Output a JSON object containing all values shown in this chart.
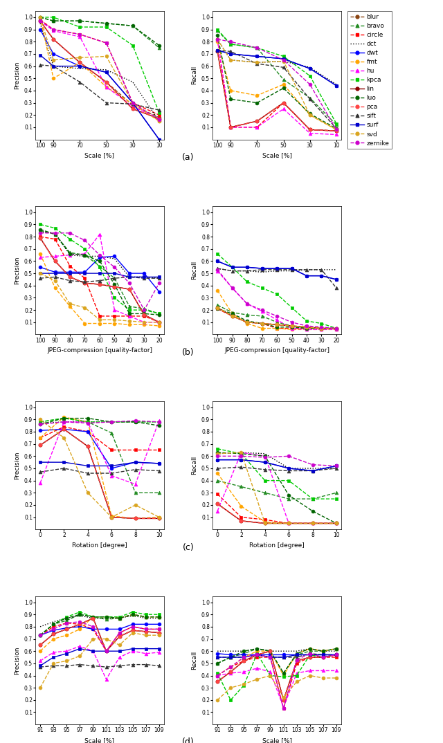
{
  "methods": [
    "blur",
    "bravo",
    "circle",
    "dct",
    "dwt",
    "fmt",
    "hu",
    "kpca",
    "lin",
    "luo",
    "pca",
    "sift",
    "surf",
    "svd",
    "zernike"
  ],
  "colors": {
    "blur": "#8B4513",
    "bravo": "#228B22",
    "circle": "#FF0000",
    "dct": "#000000",
    "dwt": "#0000FF",
    "fmt": "#FFA500",
    "hu": "#FF00FF",
    "kpca": "#00CC00",
    "lin": "#8B0000",
    "luo": "#006400",
    "pca": "#FF4444",
    "sift": "#333333",
    "surf": "#0000CC",
    "svd": "#DAA520",
    "zernike": "#CC00CC"
  },
  "linestyles": {
    "blur": "--",
    "bravo": "--",
    "circle": "--",
    "dct": ":",
    "dwt": "-",
    "fmt": "--",
    "hu": "--",
    "kpca": "--",
    "lin": "-",
    "luo": "--",
    "pca": "--",
    "sift": "--",
    "surf": "-",
    "svd": "--",
    "zernike": "--"
  },
  "markers": {
    "blur": "o",
    "bravo": "^",
    "circle": "s",
    "dct": "None",
    "dwt": "o",
    "fmt": "o",
    "hu": "^",
    "kpca": "s",
    "lin": "o",
    "luo": "o",
    "pca": "o",
    "sift": "^",
    "surf": "s",
    "svd": "o",
    "zernike": "o"
  },
  "panel_a": {
    "x": [
      100,
      90,
      70,
      50,
      30,
      10
    ],
    "invert_x": true,
    "xlabel": "Scale [%]",
    "precision": {
      "blur": [
        0.97,
        0.82,
        0.63,
        0.47,
        0.28,
        0.18
      ],
      "bravo": [
        1.0,
        0.97,
        0.97,
        0.95,
        0.93,
        0.75
      ],
      "circle": [
        0.98,
        0.9,
        0.86,
        0.79,
        0.3,
        0.2
      ],
      "dct": [
        0.95,
        0.6,
        0.58,
        0.57,
        0.47,
        0.15
      ],
      "dwt": [
        0.9,
        0.7,
        0.6,
        0.55,
        0.3,
        0.0
      ],
      "fmt": [
        1.0,
        0.5,
        0.63,
        0.43,
        0.29,
        0.15
      ],
      "hu": [
        0.97,
        0.89,
        0.84,
        0.43,
        0.27,
        0.17
      ],
      "kpca": [
        1.0,
        1.0,
        0.92,
        0.92,
        0.77,
        0.22
      ],
      "lin": [
        0.97,
        0.82,
        0.63,
        0.47,
        0.25,
        0.17
      ],
      "luo": [
        1.0,
        0.97,
        0.97,
        0.95,
        0.93,
        0.77
      ],
      "pca": [
        0.97,
        0.82,
        0.63,
        0.47,
        0.25,
        0.17
      ],
      "sift": [
        0.61,
        0.6,
        0.47,
        0.3,
        0.29,
        0.24
      ],
      "surf": [
        0.69,
        0.6,
        0.6,
        0.55,
        0.3,
        0.0
      ],
      "svd": [
        1.0,
        0.65,
        0.67,
        0.68,
        0.3,
        0.15
      ],
      "zernike": [
        0.97,
        0.9,
        0.86,
        0.79,
        0.3,
        0.16
      ]
    },
    "recall": {
      "blur": [
        0.72,
        0.1,
        0.15,
        0.3,
        0.08,
        0.07
      ],
      "bravo": [
        0.89,
        0.78,
        0.75,
        0.49,
        0.34,
        0.12
      ],
      "circle": [
        0.82,
        0.1,
        0.1,
        0.3,
        0.08,
        0.07
      ],
      "dct": [
        0.82,
        0.65,
        0.63,
        0.64,
        0.59,
        0.45
      ],
      "dwt": [
        0.73,
        0.7,
        0.68,
        0.66,
        0.58,
        0.44
      ],
      "fmt": [
        0.8,
        0.4,
        0.36,
        0.45,
        0.2,
        0.08
      ],
      "hu": [
        0.82,
        0.1,
        0.1,
        0.25,
        0.05,
        0.04
      ],
      "kpca": [
        0.9,
        0.78,
        0.75,
        0.68,
        0.52,
        0.13
      ],
      "lin": [
        0.72,
        0.1,
        0.15,
        0.3,
        0.08,
        0.07
      ],
      "luo": [
        0.85,
        0.33,
        0.3,
        0.42,
        0.21,
        0.09
      ],
      "pca": [
        0.72,
        0.1,
        0.15,
        0.3,
        0.08,
        0.07
      ],
      "sift": [
        0.73,
        0.72,
        0.62,
        0.59,
        0.33,
        0.09
      ],
      "surf": [
        0.73,
        0.7,
        0.68,
        0.66,
        0.58,
        0.44
      ],
      "svd": [
        0.82,
        0.65,
        0.63,
        0.64,
        0.2,
        0.08
      ],
      "zernike": [
        0.82,
        0.8,
        0.75,
        0.65,
        0.45,
        0.08
      ]
    }
  },
  "panel_b": {
    "x": [
      100,
      90,
      80,
      70,
      60,
      50,
      40,
      30,
      20
    ],
    "invert_x": true,
    "xlabel": "JPEG-compression [quality-factor]",
    "precision": {
      "blur": [
        0.79,
        0.6,
        0.47,
        0.42,
        0.41,
        0.39,
        0.37,
        0.16,
        0.1
      ],
      "bravo": [
        0.85,
        0.82,
        0.67,
        0.65,
        0.56,
        0.46,
        0.23,
        0.21,
        0.17
      ],
      "circle": [
        0.8,
        0.78,
        0.56,
        0.46,
        0.15,
        0.15,
        0.15,
        0.15,
        0.1
      ],
      "dct": [
        0.84,
        0.83,
        0.65,
        0.64,
        0.64,
        0.62,
        0.47,
        0.47,
        0.46
      ],
      "dwt": [
        0.55,
        0.51,
        0.51,
        0.51,
        0.63,
        0.64,
        0.5,
        0.5,
        0.35
      ],
      "fmt": [
        0.66,
        0.38,
        0.23,
        0.09,
        0.09,
        0.09,
        0.08,
        0.08,
        0.07
      ],
      "hu": [
        0.63,
        0.64,
        0.65,
        0.66,
        0.82,
        0.2,
        0.15,
        0.1,
        0.1
      ],
      "kpca": [
        0.9,
        0.87,
        0.78,
        0.7,
        0.55,
        0.3,
        0.2,
        0.2,
        0.17
      ],
      "lin": [
        0.79,
        0.6,
        0.47,
        0.42,
        0.41,
        0.39,
        0.37,
        0.16,
        0.1
      ],
      "luo": [
        0.86,
        0.82,
        0.66,
        0.65,
        0.6,
        0.41,
        0.17,
        0.17,
        0.16
      ],
      "pca": [
        0.79,
        0.6,
        0.47,
        0.42,
        0.41,
        0.39,
        0.37,
        0.16,
        0.1
      ],
      "sift": [
        0.46,
        0.47,
        0.44,
        0.43,
        0.44,
        0.46,
        0.47,
        0.46,
        0.46
      ],
      "surf": [
        0.5,
        0.5,
        0.5,
        0.5,
        0.5,
        0.5,
        0.47,
        0.47,
        0.47
      ],
      "svd": [
        0.5,
        0.44,
        0.25,
        0.22,
        0.12,
        0.12,
        0.11,
        0.1,
        0.1
      ],
      "zernike": [
        0.83,
        0.83,
        0.83,
        0.77,
        0.65,
        0.55,
        0.42,
        0.2,
        0.42
      ]
    },
    "recall": {
      "blur": [
        0.22,
        0.15,
        0.1,
        0.09,
        0.08,
        0.07,
        0.06,
        0.05,
        0.05
      ],
      "bravo": [
        0.24,
        0.18,
        0.16,
        0.15,
        0.1,
        0.07,
        0.05,
        0.05,
        0.05
      ],
      "circle": [
        0.21,
        0.15,
        0.1,
        0.09,
        0.05,
        0.05,
        0.05,
        0.05,
        0.05
      ],
      "dct": [
        0.54,
        0.52,
        0.52,
        0.51,
        0.52,
        0.52,
        0.53,
        0.53,
        0.53
      ],
      "dwt": [
        0.6,
        0.55,
        0.55,
        0.54,
        0.54,
        0.54,
        0.48,
        0.48,
        0.45
      ],
      "fmt": [
        0.36,
        0.17,
        0.09,
        0.05,
        0.05,
        0.04,
        0.04,
        0.04,
        0.04
      ],
      "hu": [
        0.52,
        0.38,
        0.25,
        0.19,
        0.12,
        0.05,
        0.04,
        0.04,
        0.04
      ],
      "kpca": [
        0.66,
        0.55,
        0.43,
        0.38,
        0.33,
        0.22,
        0.11,
        0.09,
        0.05
      ],
      "lin": [
        0.22,
        0.15,
        0.1,
        0.09,
        0.08,
        0.07,
        0.06,
        0.05,
        0.05
      ],
      "luo": [
        0.21,
        0.17,
        0.11,
        0.09,
        0.06,
        0.06,
        0.05,
        0.05,
        0.05
      ],
      "pca": [
        0.22,
        0.15,
        0.1,
        0.09,
        0.08,
        0.07,
        0.06,
        0.05,
        0.05
      ],
      "sift": [
        0.54,
        0.52,
        0.52,
        0.53,
        0.53,
        0.53,
        0.53,
        0.53,
        0.38
      ],
      "surf": [
        0.6,
        0.55,
        0.55,
        0.54,
        0.54,
        0.54,
        0.48,
        0.48,
        0.45
      ],
      "svd": [
        0.22,
        0.15,
        0.1,
        0.09,
        0.08,
        0.07,
        0.06,
        0.05,
        0.05
      ],
      "zernike": [
        0.53,
        0.38,
        0.25,
        0.2,
        0.15,
        0.1,
        0.07,
        0.06,
        0.05
      ]
    }
  },
  "panel_c": {
    "x": [
      0,
      2,
      4,
      6,
      8,
      10
    ],
    "invert_x": false,
    "xlabel": "Rotation [degree]",
    "precision": {
      "blur": [
        0.69,
        0.82,
        0.68,
        0.1,
        0.09,
        0.09
      ],
      "bravo": [
        0.88,
        0.91,
        0.88,
        0.79,
        0.3,
        0.3
      ],
      "circle": [
        0.75,
        0.84,
        0.8,
        0.65,
        0.65,
        0.65
      ],
      "dct": [
        0.87,
        0.88,
        0.88,
        0.88,
        0.88,
        0.88
      ],
      "dwt": [
        0.81,
        0.82,
        0.8,
        0.5,
        0.55,
        0.54
      ],
      "fmt": [
        0.75,
        0.92,
        0.88,
        0.11,
        0.09,
        0.1
      ],
      "hu": [
        0.38,
        0.88,
        0.88,
        0.44,
        0.37,
        0.89
      ],
      "kpca": [
        0.88,
        0.91,
        0.88,
        0.88,
        0.88,
        0.88
      ],
      "lin": [
        0.69,
        0.82,
        0.68,
        0.1,
        0.09,
        0.09
      ],
      "luo": [
        0.86,
        0.91,
        0.91,
        0.88,
        0.88,
        0.85
      ],
      "pca": [
        0.69,
        0.82,
        0.68,
        0.1,
        0.09,
        0.09
      ],
      "sift": [
        0.47,
        0.5,
        0.46,
        0.46,
        0.49,
        0.48
      ],
      "surf": [
        0.55,
        0.55,
        0.52,
        0.52,
        0.55,
        0.54
      ],
      "svd": [
        0.9,
        0.75,
        0.3,
        0.1,
        0.2,
        0.1
      ],
      "zernike": [
        0.86,
        0.88,
        0.87,
        0.88,
        0.89,
        0.88
      ]
    },
    "recall": {
      "blur": [
        0.21,
        0.07,
        0.05,
        0.05,
        0.05,
        0.05
      ],
      "bravo": [
        0.4,
        0.35,
        0.3,
        0.25,
        0.25,
        0.3
      ],
      "circle": [
        0.29,
        0.1,
        0.08,
        0.05,
        0.05,
        0.05
      ],
      "dct": [
        0.62,
        0.63,
        0.62,
        0.5,
        0.5,
        0.5
      ],
      "dwt": [
        0.57,
        0.57,
        0.55,
        0.5,
        0.48,
        0.52
      ],
      "fmt": [
        0.46,
        0.19,
        0.06,
        0.05,
        0.05,
        0.05
      ],
      "hu": [
        0.15,
        0.63,
        0.6,
        0.05,
        0.05,
        0.05
      ],
      "kpca": [
        0.66,
        0.62,
        0.4,
        0.4,
        0.25,
        0.25
      ],
      "lin": [
        0.21,
        0.07,
        0.05,
        0.05,
        0.05,
        0.05
      ],
      "luo": [
        0.63,
        0.62,
        0.6,
        0.28,
        0.15,
        0.05
      ],
      "pca": [
        0.21,
        0.07,
        0.05,
        0.05,
        0.05,
        0.05
      ],
      "sift": [
        0.5,
        0.51,
        0.49,
        0.48,
        0.48,
        0.5
      ],
      "surf": [
        0.57,
        0.57,
        0.55,
        0.5,
        0.48,
        0.52
      ],
      "svd": [
        0.62,
        0.63,
        0.05,
        0.05,
        0.05,
        0.05
      ],
      "zernike": [
        0.6,
        0.6,
        0.59,
        0.6,
        0.53,
        0.52
      ]
    }
  },
  "panel_d": {
    "x": [
      91,
      93,
      95,
      97,
      99,
      101,
      103,
      105,
      107,
      109
    ],
    "invert_x": false,
    "xlabel": "Scale [%]",
    "precision": {
      "blur": [
        0.65,
        0.74,
        0.78,
        0.82,
        0.87,
        0.6,
        0.72,
        0.77,
        0.76,
        0.75
      ],
      "bravo": [
        0.73,
        0.82,
        0.85,
        0.9,
        0.88,
        0.86,
        0.87,
        0.9,
        0.88,
        0.88
      ],
      "circle": [
        0.73,
        0.8,
        0.83,
        0.82,
        0.78,
        0.6,
        0.75,
        0.8,
        0.78,
        0.78
      ],
      "dct": [
        0.8,
        0.84,
        0.87,
        0.89,
        0.87,
        0.87,
        0.87,
        0.89,
        0.87,
        0.87
      ],
      "dwt": [
        0.73,
        0.77,
        0.79,
        0.8,
        0.78,
        0.78,
        0.78,
        0.82,
        0.82,
        0.82
      ],
      "fmt": [
        0.6,
        0.7,
        0.73,
        0.78,
        0.88,
        0.88,
        0.87,
        0.9,
        0.88,
        0.88
      ],
      "hu": [
        0.52,
        0.59,
        0.6,
        0.64,
        0.6,
        0.37,
        0.55,
        0.6,
        0.58,
        0.59
      ],
      "kpca": [
        0.73,
        0.82,
        0.88,
        0.92,
        0.88,
        0.88,
        0.88,
        0.92,
        0.9,
        0.9
      ],
      "lin": [
        0.65,
        0.74,
        0.78,
        0.82,
        0.87,
        0.6,
        0.72,
        0.77,
        0.76,
        0.75
      ],
      "luo": [
        0.73,
        0.82,
        0.87,
        0.9,
        0.88,
        0.88,
        0.87,
        0.9,
        0.88,
        0.88
      ],
      "pca": [
        0.65,
        0.74,
        0.78,
        0.82,
        0.87,
        0.6,
        0.72,
        0.77,
        0.76,
        0.75
      ],
      "sift": [
        0.47,
        0.48,
        0.48,
        0.49,
        0.48,
        0.47,
        0.48,
        0.49,
        0.49,
        0.48
      ],
      "surf": [
        0.48,
        0.55,
        0.58,
        0.62,
        0.6,
        0.6,
        0.6,
        0.62,
        0.62,
        0.62
      ],
      "svd": [
        0.3,
        0.5,
        0.52,
        0.56,
        0.7,
        0.7,
        0.65,
        0.75,
        0.73,
        0.73
      ],
      "zernike": [
        0.73,
        0.78,
        0.83,
        0.84,
        0.8,
        0.6,
        0.75,
        0.8,
        0.78,
        0.78
      ]
    },
    "recall": {
      "blur": [
        0.35,
        0.43,
        0.52,
        0.57,
        0.6,
        0.2,
        0.52,
        0.55,
        0.55,
        0.57
      ],
      "bravo": [
        0.5,
        0.55,
        0.58,
        0.62,
        0.6,
        0.42,
        0.57,
        0.6,
        0.6,
        0.62
      ],
      "circle": [
        0.4,
        0.47,
        0.52,
        0.55,
        0.55,
        0.13,
        0.5,
        0.55,
        0.55,
        0.55
      ],
      "dct": [
        0.6,
        0.6,
        0.6,
        0.62,
        0.6,
        0.6,
        0.6,
        0.62,
        0.6,
        0.6
      ],
      "dwt": [
        0.58,
        0.57,
        0.57,
        0.57,
        0.57,
        0.57,
        0.57,
        0.57,
        0.57,
        0.57
      ],
      "fmt": [
        0.4,
        0.47,
        0.55,
        0.6,
        0.6,
        0.4,
        0.58,
        0.62,
        0.6,
        0.62
      ],
      "hu": [
        0.4,
        0.42,
        0.43,
        0.46,
        0.43,
        0.14,
        0.42,
        0.44,
        0.44,
        0.44
      ],
      "kpca": [
        0.42,
        0.2,
        0.32,
        0.58,
        0.4,
        0.39,
        0.4,
        0.57,
        0.55,
        0.57
      ],
      "lin": [
        0.35,
        0.43,
        0.52,
        0.57,
        0.6,
        0.2,
        0.52,
        0.55,
        0.55,
        0.57
      ],
      "luo": [
        0.5,
        0.55,
        0.6,
        0.62,
        0.6,
        0.42,
        0.58,
        0.62,
        0.6,
        0.62
      ],
      "pca": [
        0.35,
        0.43,
        0.52,
        0.57,
        0.6,
        0.2,
        0.52,
        0.55,
        0.55,
        0.57
      ],
      "sift": [
        0.55,
        0.55,
        0.55,
        0.57,
        0.55,
        0.55,
        0.55,
        0.58,
        0.57,
        0.57
      ],
      "surf": [
        0.55,
        0.55,
        0.55,
        0.57,
        0.55,
        0.55,
        0.57,
        0.57,
        0.57,
        0.57
      ],
      "svd": [
        0.2,
        0.3,
        0.33,
        0.37,
        0.4,
        0.22,
        0.35,
        0.4,
        0.38,
        0.38
      ],
      "zernike": [
        0.4,
        0.47,
        0.55,
        0.57,
        0.55,
        0.13,
        0.53,
        0.58,
        0.55,
        0.57
      ]
    }
  },
  "legend_labels": [
    "blur",
    "bravo",
    "circle",
    "dct",
    "dwt",
    "fmt",
    "hu",
    "kpca",
    "lin",
    "luo",
    "pca",
    "sift",
    "surf",
    "svd",
    "zernike"
  ],
  "fig_width": 6.4,
  "fig_height": 10.74,
  "dpi": 100
}
